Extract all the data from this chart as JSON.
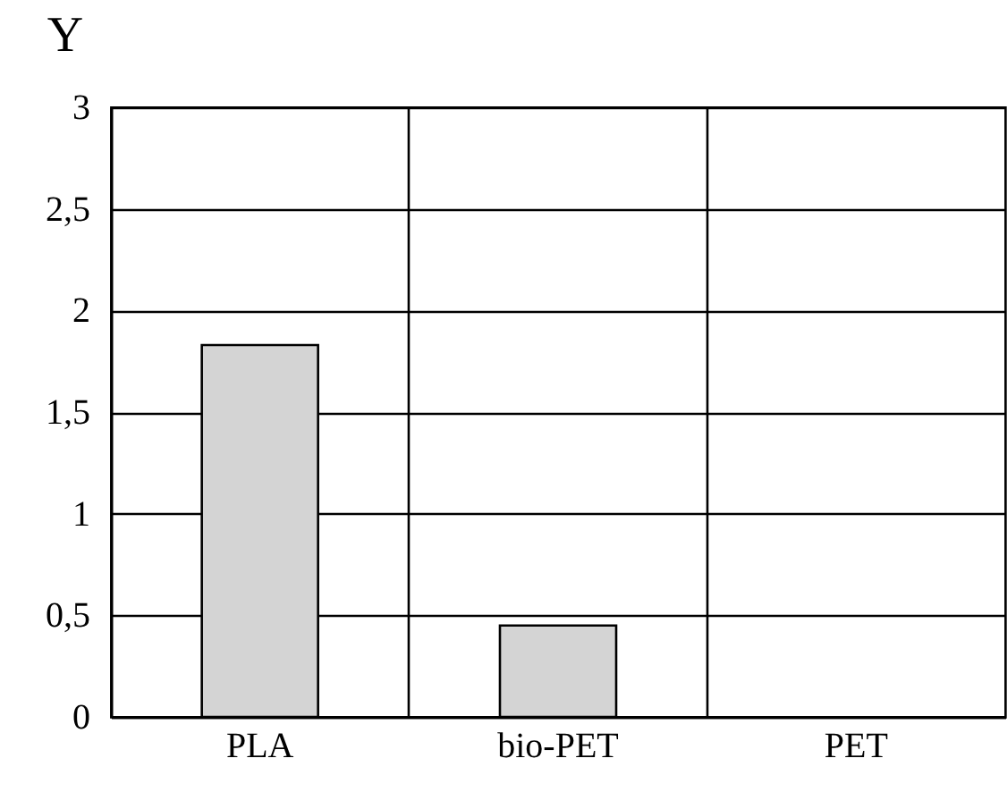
{
  "chart_data": {
    "type": "bar",
    "ylabel": "Y",
    "categories": [
      "PLA",
      "bio-PET",
      "PET"
    ],
    "values": [
      1.83,
      0.45,
      null
    ],
    "color": "#d4d4d4",
    "ylim": [
      0,
      3
    ],
    "yticks": [
      0,
      {
        "value": 0.5,
        "label": "0,5"
      },
      1,
      {
        "value": 1.5,
        "label": "1,5"
      },
      2,
      {
        "value": 2.5,
        "label": "2,5"
      },
      3
    ],
    "grid": true
  }
}
